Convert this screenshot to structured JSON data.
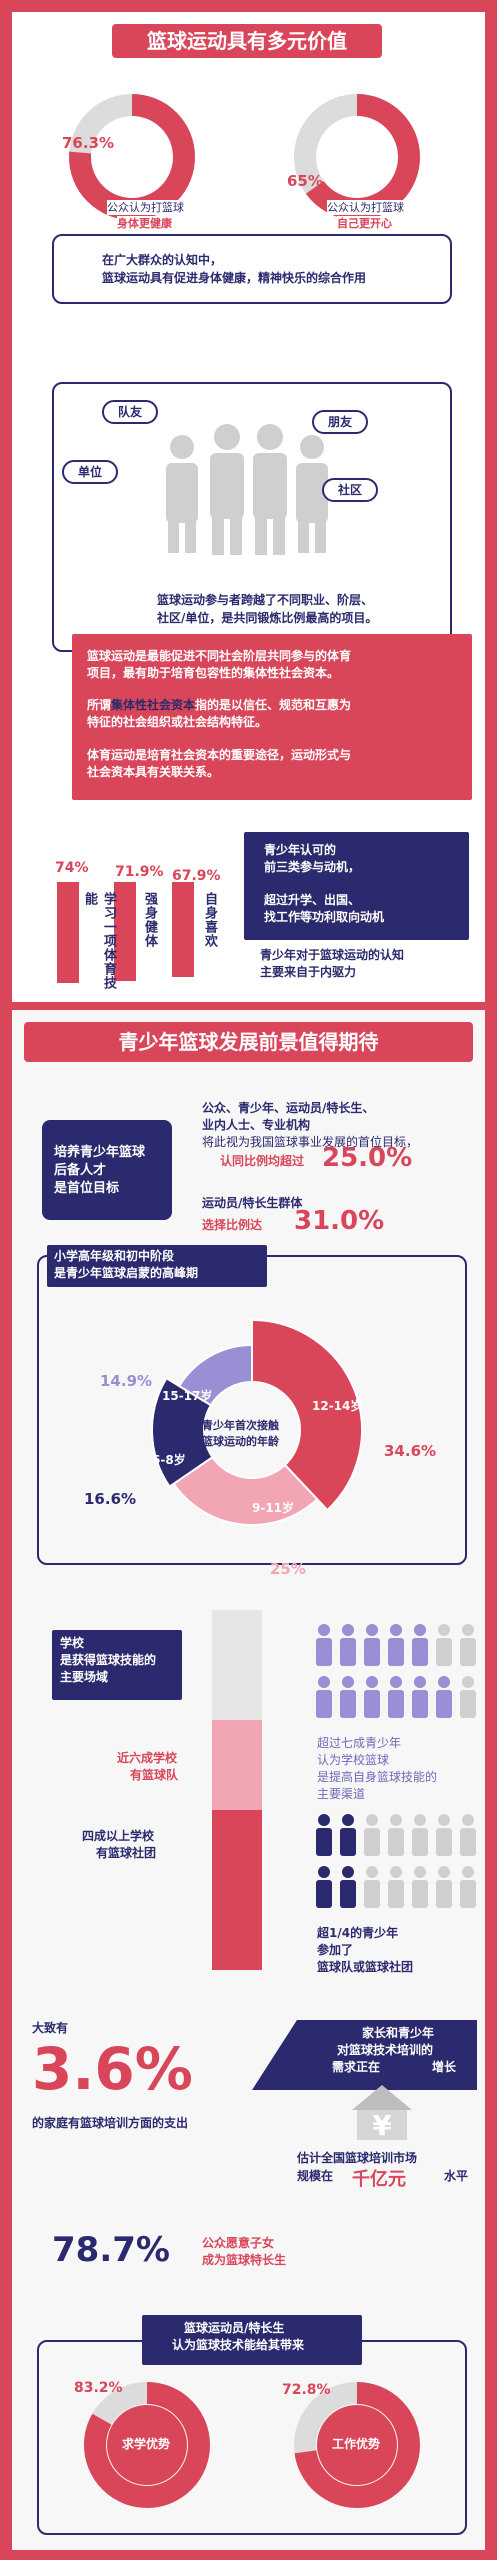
{
  "section1": {
    "title": "篮球运动具有多元价值",
    "donut1": {
      "pct": "76.3%",
      "label1": "公众认为打篮球",
      "label2": "身体更健康",
      "value": 76.3
    },
    "donut2": {
      "pct": "65%",
      "label1": "公众认为打篮球",
      "label2": "自己更开心",
      "value": 65
    },
    "summary1": "在广大群众的认知中，",
    "summary2": "篮球运动具有促进身体健康，精神快乐的综合作用",
    "social": {
      "labels": [
        "队友",
        "朋友",
        "单位",
        "社区"
      ],
      "text1": "篮球运动参与者跨越了不同职业、阶层、",
      "text2": "社区/单位，是共同锻炼比例最高的项目。"
    },
    "redbox": {
      "p1a": "篮球运动是最能促进不同社会阶层共同参与的体育",
      "p1b": "项目，最有助于培育包容性的集体性社会资本。",
      "p2a_pre": "所谓",
      "p2a_hl": "集体性社会资本",
      "p2a_post": "指的是以信任、规范和互惠为",
      "p2b": "特征的社会组织或社会结构特征。",
      "p3a": "体育运动是培育社会资本的重要途径，运动形式与",
      "p3b": "社会资本具有关联关系。"
    },
    "bars": [
      {
        "pct": "74%",
        "label": "学习一项体育技能",
        "value": 74
      },
      {
        "pct": "71.9%",
        "label": "强身健体",
        "value": 71.9
      },
      {
        "pct": "67.9%",
        "label": "自身喜欢",
        "value": 67.9
      }
    ],
    "motive": {
      "n1": "青少年认可的",
      "n2": "前三类参与动机，",
      "n3": "超过升学、出国、",
      "n4": "找工作等功利取向动机",
      "s1": "青少年对于篮球运动的认知",
      "s2": "主要来自于内驱力"
    }
  },
  "section2": {
    "title": "青少年篮球发展前景值得期待",
    "target": {
      "left1": "培养青少年篮球",
      "left2": "后备人才",
      "left3": "是首位目标",
      "r1": "公众、青少年、运动员/特长生、",
      "r2": "业内人士、专业机构",
      "r3": "将此视为我国篮球事业发展的首位目标，",
      "r4": "认同比例均超过",
      "r4pct": "25.0%",
      "r5": "运动员/特长生群体",
      "r6": "选择比例达",
      "r6pct": "31.0%"
    },
    "age": {
      "head1": "小学高年级和初中阶段",
      "head2": "是青少年篮球启蒙的高峰期",
      "center1": "青少年首次接触",
      "center2": "篮球运动的年龄",
      "slices": [
        {
          "label": "12-14岁",
          "pct": "34.6%",
          "value": 34.6,
          "color": "#d9465a"
        },
        {
          "label": "9-11岁",
          "pct": "25%",
          "value": 25,
          "color": "#f2a6b3"
        },
        {
          "label": "6-8岁",
          "pct": "16.6%",
          "value": 16.6,
          "color": "#2b2a6e"
        },
        {
          "label": "15-17岁",
          "pct": "14.9%",
          "value": 14.9,
          "color": "#9a8fd4"
        }
      ]
    },
    "school": {
      "head1": "学校",
      "head2": "是获得篮球技能的",
      "head3": "主要场域",
      "l1a": "近六成学校",
      "l1b": "有篮球队",
      "l2a": "四成以上学校",
      "l2b": "有篮球社团",
      "r1a": "超过七成青少年",
      "r1b": "认为学校篮球",
      "r1c": "是提高自身篮球技能的",
      "r1d": "主要渠道",
      "r2a": "超1/4的青少年",
      "r2b": "参加了",
      "r2c": "篮球队或篮球社团"
    },
    "spend": {
      "pre": "大致有",
      "big": "3.6%",
      "post": "的家庭有篮球培训方面的支出",
      "rb1": "家长和青少年",
      "rb2": "对篮球技术培训的",
      "rb3": "需求正在",
      "rb3b": "增长",
      "m1": "估计全国篮球培训市场",
      "m2": "规模在",
      "m2b": "千亿元",
      "m2c": "水平"
    },
    "willing": {
      "big": "78.7%",
      "t1": "公众愿意子女",
      "t2": "成为篮球特长生"
    },
    "benefit": {
      "head1": "篮球运动员/特长生",
      "head2": "认为篮球技术能给其带来",
      "d1": {
        "pct": "83.2%",
        "label": "求学优势",
        "value": 83.2
      },
      "d2": {
        "pct": "72.8%",
        "label": "工作优势",
        "value": 72.8
      }
    }
  }
}
